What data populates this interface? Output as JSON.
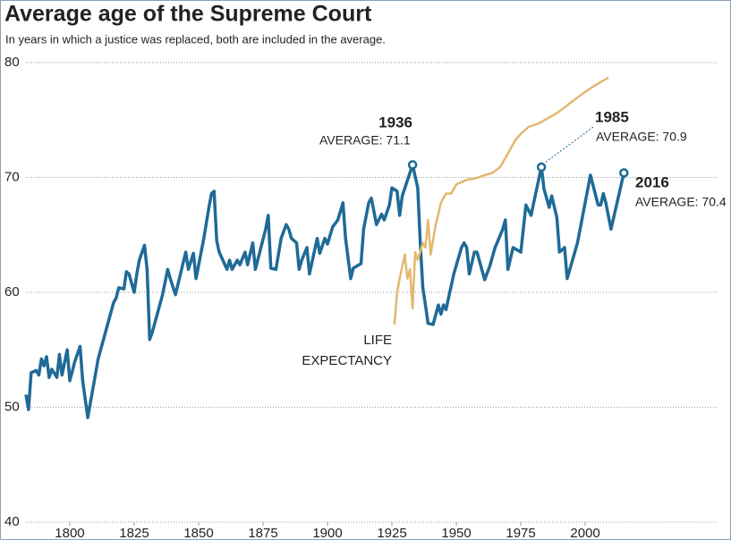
{
  "chart_data": {
    "type": "line",
    "title": "Average age of the Supreme Court",
    "subtitle": "In years in which a justice was replaced, both are included in the average.",
    "xlim": [
      1783,
      2051
    ],
    "xticks": [
      1800,
      1825,
      1850,
      1875,
      1900,
      1925,
      1950,
      1975,
      2000
    ],
    "ylim": [
      40,
      80
    ],
    "yticks": [
      40,
      50,
      60,
      70,
      80
    ],
    "grid": true,
    "series": [
      {
        "color": "#1f6a97",
        "x": [
          1783,
          1784,
          1785,
          1787,
          1788,
          1789,
          1790,
          1791,
          1792,
          1793,
          1795,
          1796,
          1797,
          1799,
          1800,
          1802,
          1804,
          1805,
          1807,
          1811,
          1817,
          1818,
          1819,
          1821,
          1822,
          1823,
          1825,
          1826,
          1827,
          1829,
          1830,
          1831,
          1832,
          1836,
          1838,
          1839,
          1841,
          1845,
          1846,
          1848,
          1849,
          1852,
          1854,
          1855,
          1856,
          1857,
          1858,
          1861,
          1862,
          1863,
          1865,
          1866,
          1868,
          1869,
          1871,
          1872,
          1876,
          1877,
          1878,
          1880,
          1882,
          1884,
          1885,
          1886,
          1888,
          1889,
          1890,
          1892,
          1893,
          1896,
          1897,
          1899,
          1900,
          1902,
          1904,
          1906,
          1907,
          1909,
          1910,
          1913,
          1914,
          1916,
          1917,
          1919,
          1921,
          1922,
          1924,
          1925,
          1927,
          1928,
          1929,
          1933,
          1935,
          1936,
          1937,
          1938,
          1939,
          1941,
          1943,
          1944,
          1945,
          1946,
          1949,
          1952,
          1953,
          1954,
          1955,
          1957,
          1958,
          1961,
          1963,
          1965,
          1968,
          1969,
          1970,
          1972,
          1975,
          1977,
          1979,
          1980,
          1983,
          1984,
          1986,
          1987,
          1989,
          1990,
          1992,
          1993,
          1997,
          2002,
          2005,
          2006,
          2007,
          2008,
          2010,
          2015
        ],
        "values": [
          51.1,
          49.8,
          53.0,
          53.2,
          52.8,
          54.2,
          53.6,
          54.4,
          52.6,
          53.3,
          52.6,
          54.6,
          52.8,
          55.0,
          52.3,
          54.0,
          55.3,
          52.3,
          49.1,
          54.2,
          59.1,
          59.5,
          60.4,
          60.3,
          61.8,
          61.6,
          60.0,
          61.6,
          62.8,
          64.1,
          62.0,
          55.9,
          56.5,
          59.8,
          62.0,
          61.2,
          59.8,
          63.5,
          62.0,
          63.4,
          61.2,
          64.7,
          67.4,
          68.6,
          68.8,
          64.5,
          63.5,
          62.0,
          62.8,
          62.0,
          62.8,
          62.4,
          63.5,
          62.4,
          64.3,
          62.0,
          65.5,
          66.7,
          62.1,
          62.0,
          64.7,
          65.9,
          65.5,
          64.7,
          64.3,
          62.0,
          62.8,
          63.9,
          61.6,
          64.7,
          63.4,
          64.7,
          64.2,
          65.7,
          66.3,
          67.8,
          64.7,
          61.2,
          62.1,
          62.5,
          65.5,
          67.8,
          68.2,
          65.9,
          66.8,
          66.3,
          67.6,
          69.1,
          68.8,
          66.7,
          68.4,
          71.1,
          69.1,
          64.3,
          60.4,
          58.9,
          57.3,
          57.2,
          58.9,
          58.1,
          58.9,
          58.5,
          61.6,
          63.9,
          64.3,
          63.9,
          61.6,
          63.5,
          63.5,
          61.1,
          62.3,
          63.9,
          65.5,
          66.3,
          62.0,
          63.9,
          63.5,
          67.6,
          66.7,
          67.8,
          70.9,
          69.0,
          67.4,
          68.4,
          66.5,
          63.5,
          63.9,
          61.2,
          64.3,
          70.2,
          67.6,
          67.6,
          68.6,
          67.8,
          65.5,
          70.4
        ]
      },
      {
        "color": "#e2b86f",
        "x": [
          1926,
          1927,
          1928,
          1930,
          1931,
          1932,
          1933,
          1934,
          1935,
          1937,
          1938,
          1939,
          1940,
          1942,
          1943,
          1944,
          1946,
          1948,
          1950,
          1954,
          1957,
          1961,
          1964,
          1967,
          1969,
          1971,
          1973,
          1975,
          1978,
          1982,
          1985,
          1989,
          1992,
          1996,
          1999,
          2003,
          2006,
          2009
        ],
        "values": [
          57.2,
          60.0,
          61.2,
          63.3,
          61.2,
          62.0,
          58.6,
          63.5,
          62.8,
          64.3,
          63.9,
          66.3,
          63.3,
          65.9,
          66.8,
          67.8,
          68.6,
          68.6,
          69.4,
          69.8,
          69.9,
          70.2,
          70.4,
          70.9,
          71.7,
          72.5,
          73.3,
          73.8,
          74.4,
          74.7,
          75.1,
          75.6,
          76.1,
          76.8,
          77.3,
          77.9,
          78.3,
          78.7
        ]
      }
    ],
    "annotations": [
      {
        "title": "1936",
        "label": "AVERAGE: 71.1"
      },
      {
        "title": "1985",
        "label": "AVERAGE: 70.9"
      },
      {
        "title": "2016",
        "label": "AVERAGE: 70.4"
      }
    ],
    "series_label": [
      "LIFE",
      "EXPECTANCY"
    ]
  }
}
